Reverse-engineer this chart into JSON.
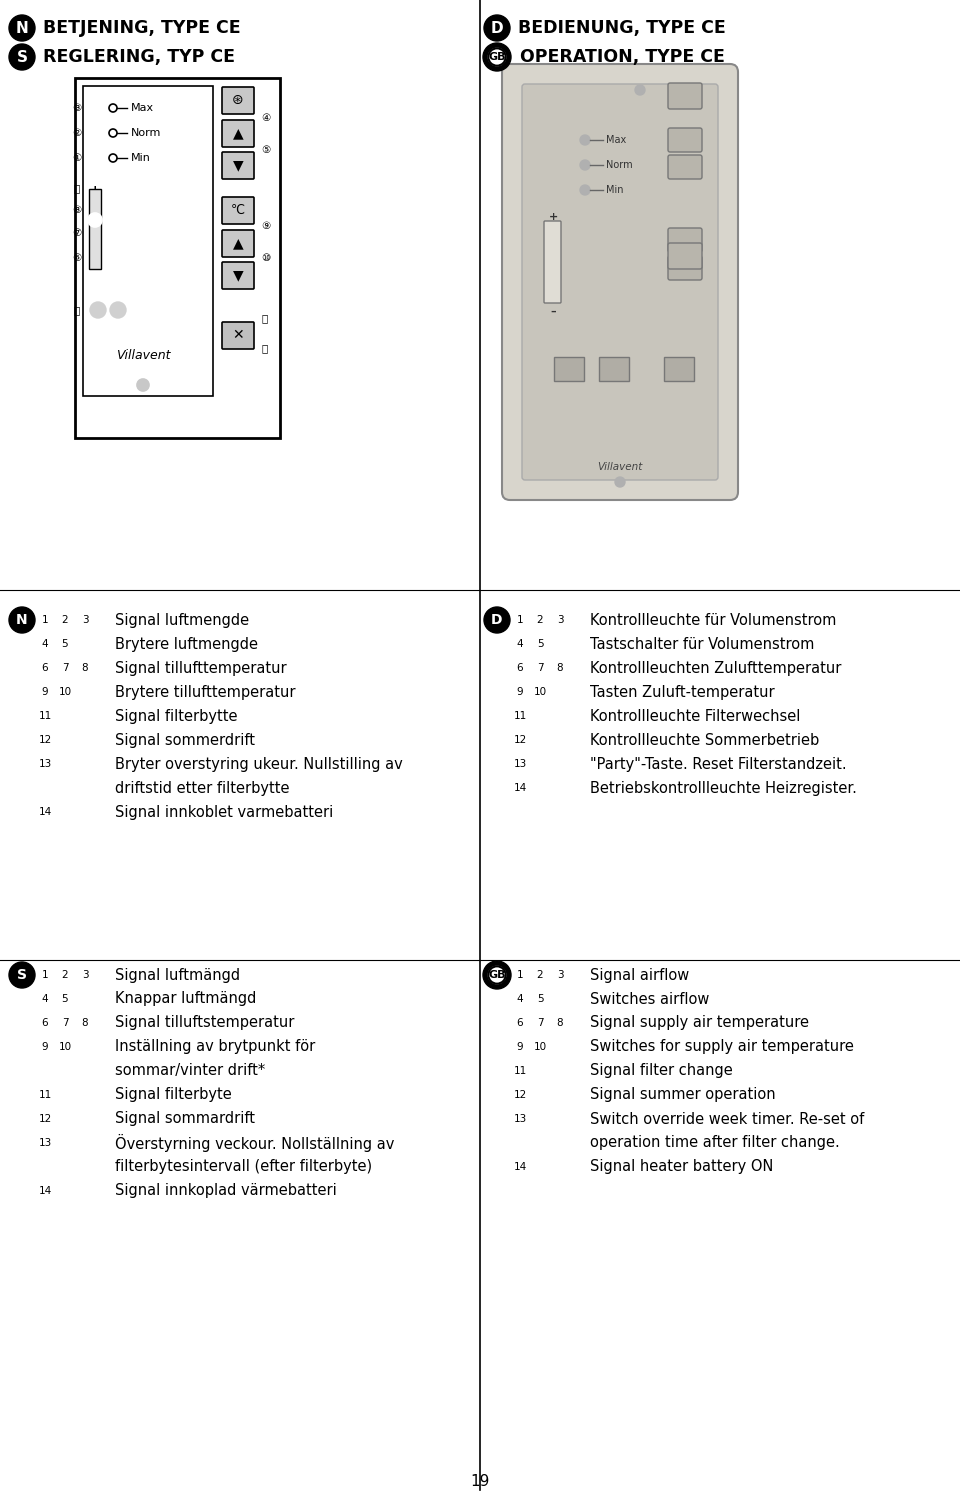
{
  "page_number": "19",
  "bg_color": "#ffffff",
  "header_left": [
    {
      "symbol": "N",
      "text": "BETJENING, TYPE CE"
    },
    {
      "symbol": "S",
      "text": "REGLERING, TYP CE"
    }
  ],
  "header_right": [
    {
      "symbol": "D",
      "text": "BEDIENUNG, TYPE CE"
    },
    {
      "symbol": "GB",
      "text": "OPERATION, TYPE CE"
    }
  ],
  "section_N": {
    "symbol": "N",
    "items": [
      {
        "nums": [
          1,
          2,
          3
        ],
        "text": "Signal luftmengde",
        "wrap": false
      },
      {
        "nums": [
          4,
          5
        ],
        "text": "Brytere luftmengde",
        "wrap": false
      },
      {
        "nums": [
          6,
          7,
          8
        ],
        "text": "Signal tillufttemperatur",
        "wrap": false
      },
      {
        "nums": [
          9,
          10
        ],
        "text": "Brytere tillufttemperatur",
        "wrap": false
      },
      {
        "nums": [
          11
        ],
        "text": "Signal filterbytte",
        "wrap": false
      },
      {
        "nums": [
          12
        ],
        "text": "Signal sommerdrift",
        "wrap": false
      },
      {
        "nums": [
          13
        ],
        "text": "Bryter overstyring ukeur. Nullstilling av",
        "wrap": true,
        "wrap_text": "driftstid etter filterbytte"
      },
      {
        "nums": [
          14
        ],
        "text": "Signal innkoblet varmebatteri",
        "wrap": false
      }
    ]
  },
  "section_D": {
    "symbol": "D",
    "items": [
      {
        "nums": [
          1,
          2,
          3
        ],
        "text": "Kontrollleuchte für Volumenstrom",
        "wrap": false
      },
      {
        "nums": [
          4,
          5
        ],
        "text": "Tastschalter für Volumenstrom",
        "wrap": false
      },
      {
        "nums": [
          6,
          7,
          8
        ],
        "text": "Kontrollleuchten Zulufttemperatur",
        "wrap": false
      },
      {
        "nums": [
          9,
          10
        ],
        "text": "Tasten Zuluft-temperatur",
        "wrap": false
      },
      {
        "nums": [
          11
        ],
        "text": "Kontrollleuchte Filterwechsel",
        "wrap": false
      },
      {
        "nums": [
          12
        ],
        "text": "Kontrollleuchte Sommerbetrieb",
        "wrap": false
      },
      {
        "nums": [
          13
        ],
        "text": "\"Party\"-Taste. Reset Filterstandzeit.",
        "wrap": false
      },
      {
        "nums": [
          14
        ],
        "text": "Betriebskontrollleuchte Heizregister.",
        "wrap": false
      }
    ]
  },
  "section_S": {
    "symbol": "S",
    "items": [
      {
        "nums": [
          1,
          2,
          3
        ],
        "text": "Signal luftmängd",
        "wrap": false
      },
      {
        "nums": [
          4,
          5
        ],
        "text": "Knappar luftmängd",
        "wrap": false
      },
      {
        "nums": [
          6,
          7,
          8
        ],
        "text": "Signal tilluftstemperatur",
        "wrap": false
      },
      {
        "nums": [
          9,
          10
        ],
        "text": "Inställning av brytpunkt för",
        "wrap": true,
        "wrap_text": "sommar/vinter drift*"
      },
      {
        "nums": [
          11
        ],
        "text": "Signal filterbyte",
        "wrap": false
      },
      {
        "nums": [
          12
        ],
        "text": "Signal sommardrift",
        "wrap": false
      },
      {
        "nums": [
          13
        ],
        "text": "Överstyrning veckour. Nollställning av",
        "wrap": true,
        "wrap_text": "filterbytesintervall (efter filterbyte)"
      },
      {
        "nums": [
          14
        ],
        "text": "Signal innkoplad värmebatteri",
        "wrap": false
      }
    ]
  },
  "section_GB": {
    "symbol": "GB",
    "items": [
      {
        "nums": [
          1,
          2,
          3
        ],
        "text": "Signal airflow",
        "wrap": false
      },
      {
        "nums": [
          4,
          5
        ],
        "text": "Switches airflow",
        "wrap": false
      },
      {
        "nums": [
          6,
          7,
          8
        ],
        "text": "Signal supply air temperature",
        "wrap": false
      },
      {
        "nums": [
          9,
          10
        ],
        "text": "Switches for supply air temperature",
        "wrap": false
      },
      {
        "nums": [
          11
        ],
        "text": "Signal filter change",
        "wrap": false
      },
      {
        "nums": [
          12
        ],
        "text": "Signal summer operation",
        "wrap": false
      },
      {
        "nums": [
          13
        ],
        "text": "Switch override week timer. Re-set of",
        "wrap": true,
        "wrap_text": "operation time after filter change."
      },
      {
        "nums": [
          14
        ],
        "text": "Signal heater battery ON",
        "wrap": false
      }
    ]
  }
}
